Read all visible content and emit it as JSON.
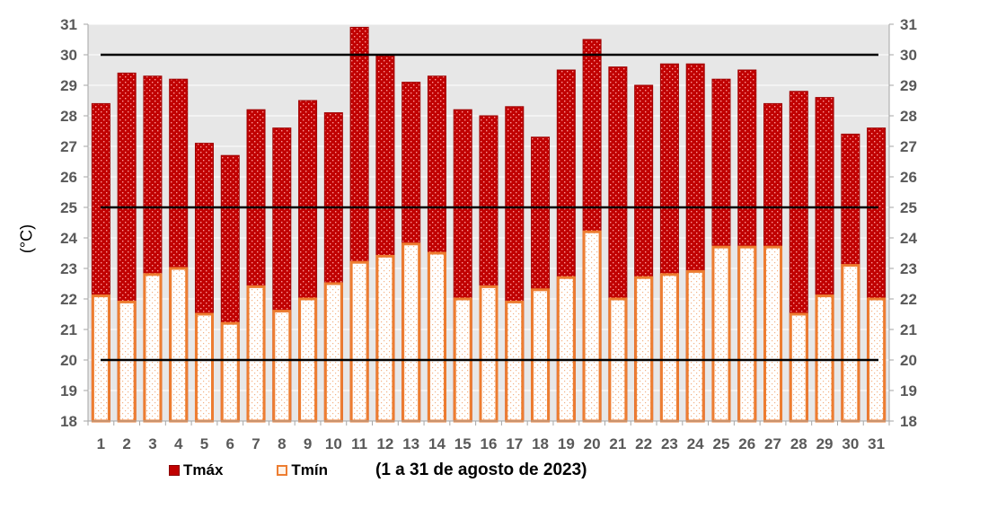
{
  "chart_data": {
    "type": "bar",
    "title": "",
    "caption": "(1 a 31 de agosto de 2023)",
    "ylabel": "(°C)",
    "xlabel": "",
    "ylim": [
      18,
      31
    ],
    "yticks": [
      18,
      19,
      20,
      21,
      22,
      23,
      24,
      25,
      26,
      27,
      28,
      29,
      30,
      31
    ],
    "reference_lines": [
      20,
      25,
      30
    ],
    "grid": true,
    "legend_position": "bottom-left",
    "categories": [
      "1",
      "2",
      "3",
      "4",
      "5",
      "6",
      "7",
      "8",
      "9",
      "10",
      "11",
      "12",
      "13",
      "14",
      "15",
      "16",
      "17",
      "18",
      "19",
      "20",
      "21",
      "22",
      "23",
      "24",
      "25",
      "26",
      "27",
      "28",
      "29",
      "30",
      "31"
    ],
    "series": [
      {
        "name": "Tmáx",
        "color": "#c00000",
        "values": [
          28.4,
          29.4,
          29.3,
          29.2,
          27.1,
          26.7,
          28.2,
          27.6,
          28.5,
          28.1,
          30.9,
          30.0,
          29.1,
          29.3,
          28.2,
          28.0,
          28.3,
          27.3,
          29.5,
          30.5,
          29.6,
          29.0,
          29.7,
          29.7,
          29.2,
          29.5,
          28.4,
          28.8,
          28.6,
          27.4,
          27.6
        ]
      },
      {
        "name": "Tmín",
        "color": "#ed7d31",
        "values": [
          22.1,
          21.9,
          22.8,
          23.0,
          21.5,
          21.2,
          22.4,
          21.6,
          22.0,
          22.5,
          23.2,
          23.4,
          23.8,
          23.5,
          22.0,
          22.4,
          21.9,
          22.3,
          22.7,
          24.2,
          22.0,
          22.7,
          22.8,
          22.9,
          23.7,
          23.7,
          23.7,
          21.5,
          22.1,
          23.1,
          22.0
        ]
      }
    ]
  }
}
